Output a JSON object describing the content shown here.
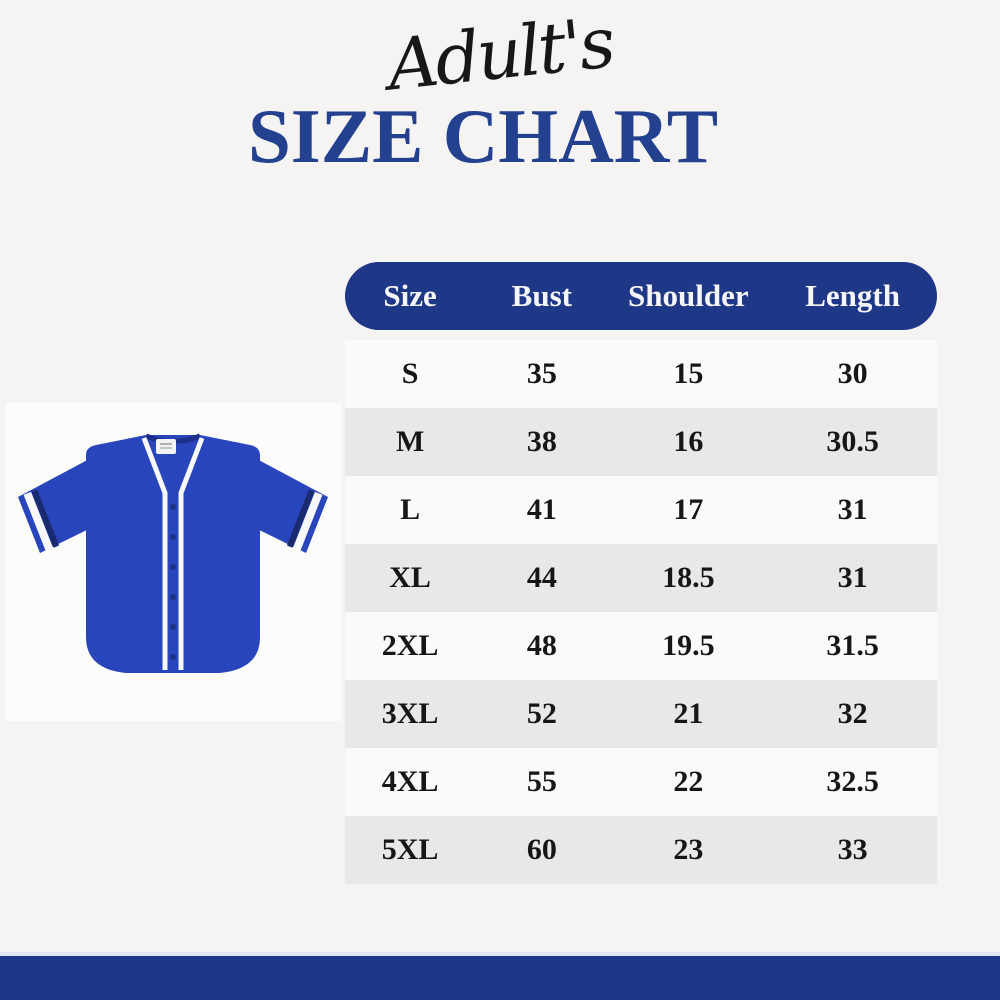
{
  "page": {
    "colors": {
      "page_background": "#f5f4f2",
      "accent_blue": "#1e3787",
      "title_blue": "#24418f",
      "row_alt_gray": "#e9e8e6",
      "row_white": "#fafaf8",
      "jersey_blue": "#2845bb",
      "jersey_trim_navy": "#1a2a6e",
      "jersey_trim_white": "#f7f8fc",
      "table_text": "#161616"
    }
  },
  "header": {
    "script_title": "Adult's",
    "main_title": "SIZE CHART"
  },
  "jersey_image": {
    "description": "royal blue button-front baseball jersey with white piping"
  },
  "size_chart": {
    "columns": [
      "Size",
      "Bust",
      "Shoulder",
      "Length"
    ],
    "rows": [
      {
        "size": "S",
        "bust": "35",
        "shoulder": "15",
        "length": "30"
      },
      {
        "size": "M",
        "bust": "38",
        "shoulder": "16",
        "length": "30.5"
      },
      {
        "size": "L",
        "bust": "41",
        "shoulder": "17",
        "length": "31"
      },
      {
        "size": "XL",
        "bust": "44",
        "shoulder": "18.5",
        "length": "31"
      },
      {
        "size": "2XL",
        "bust": "48",
        "shoulder": "19.5",
        "length": "31.5"
      },
      {
        "size": "3XL",
        "bust": "52",
        "shoulder": "21",
        "length": "32"
      },
      {
        "size": "4XL",
        "bust": "55",
        "shoulder": "22",
        "length": "32.5"
      },
      {
        "size": "5XL",
        "bust": "60",
        "shoolder_note": "",
        "shoulder": "23",
        "length": "33"
      }
    ]
  },
  "chart_data": {
    "type": "table",
    "title": "Adult's Size Chart",
    "columns": [
      "Size",
      "Bust",
      "Shoulder",
      "Length"
    ],
    "rows": [
      [
        "S",
        35,
        15,
        30
      ],
      [
        "M",
        38,
        16,
        30.5
      ],
      [
        "L",
        41,
        17,
        31
      ],
      [
        "XL",
        44,
        18.5,
        31
      ],
      [
        "2XL",
        48,
        19.5,
        31.5
      ],
      [
        "3XL",
        52,
        21,
        32
      ],
      [
        "4XL",
        55,
        22,
        32.5
      ],
      [
        "5XL",
        60,
        23,
        33
      ]
    ]
  }
}
